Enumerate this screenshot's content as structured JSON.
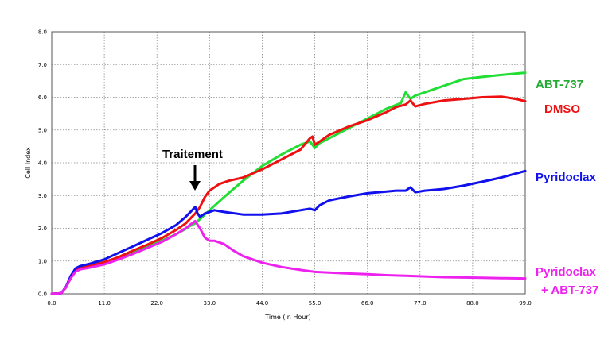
{
  "chart_data": {
    "type": "line",
    "xlabel": "Time (in Hour)",
    "ylabel": "Cell Index",
    "xlim": [
      0,
      99
    ],
    "ylim": [
      0,
      8
    ],
    "x_ticks": [
      "0.0",
      "11.0",
      "22.0",
      "33.0",
      "44.0",
      "55.0",
      "66.0",
      "77.0",
      "88.0",
      "99.0"
    ],
    "y_ticks": [
      "0.0",
      "1.0",
      "2.0",
      "3.0",
      "4.0",
      "5.0",
      "6.0",
      "7.0",
      "8.0"
    ],
    "grid": true,
    "annotation": {
      "text": "Traitement",
      "x": 30,
      "arrow": "down"
    },
    "series": [
      {
        "name": "ABT-737",
        "color": "#22dd33",
        "x": [
          0,
          2,
          3,
          4,
          5,
          6,
          8,
          11,
          14,
          17,
          20,
          23,
          26,
          28,
          29,
          30,
          31,
          33,
          36,
          40,
          44,
          48,
          52,
          54,
          55,
          56,
          58,
          62,
          66,
          70,
          73,
          74,
          75,
          76,
          78,
          82,
          86,
          90,
          94,
          99
        ],
        "y": [
          0,
          0.02,
          0.2,
          0.5,
          0.7,
          0.78,
          0.85,
          0.95,
          1.1,
          1.28,
          1.45,
          1.62,
          1.82,
          1.98,
          2.08,
          2.15,
          2.28,
          2.55,
          2.95,
          3.45,
          3.9,
          4.25,
          4.55,
          4.65,
          4.45,
          4.6,
          4.75,
          5.05,
          5.35,
          5.65,
          5.82,
          6.15,
          5.95,
          6.05,
          6.15,
          6.35,
          6.55,
          6.62,
          6.68,
          6.75
        ]
      },
      {
        "name": "DMSO",
        "color": "#ee1111",
        "x": [
          0,
          2,
          3,
          4,
          5,
          6,
          8,
          11,
          14,
          17,
          20,
          23,
          26,
          28,
          29,
          30,
          30.5,
          31,
          32,
          33,
          35,
          37,
          40,
          44,
          48,
          52,
          54,
          54.5,
          55,
          56,
          58,
          62,
          66,
          70,
          72,
          74,
          75,
          76,
          78,
          82,
          86,
          90,
          94,
          97,
          99
        ],
        "y": [
          0,
          0.02,
          0.2,
          0.5,
          0.72,
          0.78,
          0.85,
          0.97,
          1.12,
          1.32,
          1.5,
          1.7,
          1.95,
          2.15,
          2.3,
          2.45,
          2.55,
          2.65,
          2.95,
          3.15,
          3.35,
          3.45,
          3.55,
          3.8,
          4.1,
          4.4,
          4.75,
          4.8,
          4.55,
          4.65,
          4.85,
          5.1,
          5.3,
          5.55,
          5.7,
          5.78,
          5.9,
          5.72,
          5.8,
          5.9,
          5.95,
          6.0,
          6.02,
          5.95,
          5.88
        ]
      },
      {
        "name": "Pyridoclax",
        "color": "#1111ee",
        "x": [
          0,
          2,
          3,
          4,
          5,
          6,
          8,
          11,
          14,
          17,
          20,
          23,
          26,
          28,
          29,
          30,
          30.5,
          31,
          32,
          34,
          36,
          40,
          44,
          48,
          52,
          54,
          55,
          56,
          58,
          62,
          66,
          70,
          72,
          74,
          75,
          76,
          78,
          82,
          86,
          90,
          94,
          99
        ],
        "y": [
          0,
          0.02,
          0.22,
          0.55,
          0.78,
          0.85,
          0.92,
          1.05,
          1.25,
          1.45,
          1.65,
          1.85,
          2.1,
          2.35,
          2.5,
          2.65,
          2.45,
          2.35,
          2.45,
          2.55,
          2.5,
          2.42,
          2.42,
          2.45,
          2.55,
          2.6,
          2.55,
          2.7,
          2.85,
          2.97,
          3.07,
          3.12,
          3.15,
          3.15,
          3.25,
          3.1,
          3.15,
          3.2,
          3.3,
          3.42,
          3.55,
          3.75
        ]
      },
      {
        "name": "Pyridoclax\n+ ABT-737",
        "color": "#ee22ee",
        "x": [
          0,
          2,
          3,
          4,
          5,
          6,
          8,
          11,
          14,
          17,
          20,
          23,
          26,
          28,
          29,
          30,
          31,
          32,
          33,
          34,
          36,
          38,
          40,
          44,
          48,
          52,
          55,
          58,
          62,
          66,
          70,
          74,
          78,
          82,
          86,
          90,
          94,
          99
        ],
        "y": [
          0,
          0.02,
          0.2,
          0.48,
          0.68,
          0.75,
          0.8,
          0.9,
          1.05,
          1.22,
          1.4,
          1.58,
          1.82,
          2.0,
          2.12,
          2.22,
          2.0,
          1.72,
          1.62,
          1.62,
          1.52,
          1.32,
          1.15,
          0.95,
          0.82,
          0.73,
          0.67,
          0.65,
          0.62,
          0.6,
          0.57,
          0.55,
          0.53,
          0.51,
          0.5,
          0.49,
          0.48,
          0.47
        ]
      }
    ]
  },
  "series_labels": [
    {
      "text": "ABT-737",
      "color": "#22aa33"
    },
    {
      "text": "DMSO",
      "color": "#ee1111"
    },
    {
      "text": "Pyridoclax",
      "color": "#1111ee"
    },
    {
      "text": "Pyridoclax",
      "color": "#ee22ee"
    },
    {
      "text": "+ ABT-737",
      "color": "#ee22ee"
    }
  ]
}
